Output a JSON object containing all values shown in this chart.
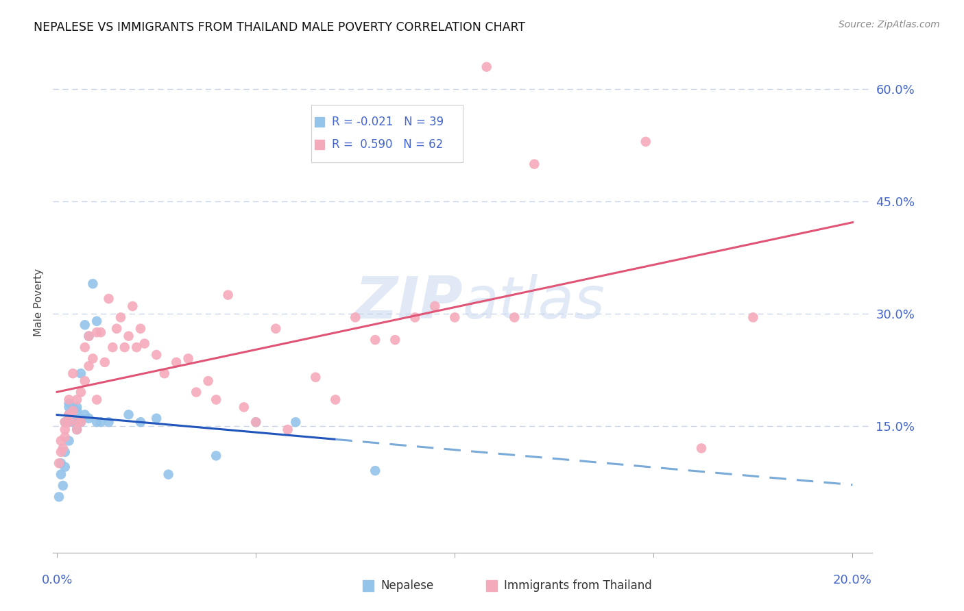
{
  "title": "NEPALESE VS IMMIGRANTS FROM THAILAND MALE POVERTY CORRELATION CHART",
  "source": "Source: ZipAtlas.com",
  "ylabel": "Male Poverty",
  "ymin": -0.02,
  "ymax": 0.65,
  "xmin": -0.001,
  "xmax": 0.205,
  "background_color": "#ffffff",
  "watermark": "ZIPAtlas",
  "blue_color": "#94C4EA",
  "pink_color": "#F5AABB",
  "blue_line_color": "#2255BB",
  "pink_line_color": "#E05575",
  "blue_dashed_color": "#7AAAD8",
  "grid_color": "#C8D4E8",
  "text_color": "#4466CC",
  "title_color": "#111111",
  "yticks": [
    0.0,
    0.15,
    0.3,
    0.45,
    0.6
  ],
  "ytick_labels": [
    "",
    "15.0%",
    "30.0%",
    "45.0%",
    "60.0%"
  ],
  "nepalese_x": [
    0.0005,
    0.001,
    0.001,
    0.0015,
    0.002,
    0.002,
    0.002,
    0.003,
    0.003,
    0.003,
    0.003,
    0.003,
    0.004,
    0.004,
    0.004,
    0.005,
    0.005,
    0.005,
    0.005,
    0.006,
    0.006,
    0.006,
    0.007,
    0.007,
    0.008,
    0.008,
    0.009,
    0.01,
    0.01,
    0.011,
    0.013,
    0.018,
    0.021,
    0.025,
    0.028,
    0.04,
    0.05,
    0.06,
    0.08
  ],
  "nepalese_y": [
    0.055,
    0.085,
    0.1,
    0.07,
    0.095,
    0.115,
    0.155,
    0.13,
    0.155,
    0.165,
    0.175,
    0.18,
    0.155,
    0.16,
    0.175,
    0.145,
    0.155,
    0.17,
    0.175,
    0.155,
    0.16,
    0.22,
    0.165,
    0.285,
    0.16,
    0.27,
    0.34,
    0.155,
    0.29,
    0.155,
    0.155,
    0.165,
    0.155,
    0.16,
    0.085,
    0.11,
    0.155,
    0.155,
    0.09
  ],
  "thailand_x": [
    0.0005,
    0.001,
    0.001,
    0.0015,
    0.002,
    0.002,
    0.002,
    0.003,
    0.003,
    0.003,
    0.004,
    0.004,
    0.005,
    0.005,
    0.005,
    0.006,
    0.006,
    0.007,
    0.007,
    0.008,
    0.008,
    0.009,
    0.01,
    0.01,
    0.011,
    0.012,
    0.013,
    0.014,
    0.015,
    0.016,
    0.017,
    0.018,
    0.019,
    0.02,
    0.021,
    0.022,
    0.025,
    0.027,
    0.03,
    0.033,
    0.035,
    0.038,
    0.04,
    0.043,
    0.047,
    0.05,
    0.055,
    0.058,
    0.065,
    0.07,
    0.075,
    0.08,
    0.085,
    0.09,
    0.095,
    0.1,
    0.108,
    0.115,
    0.12,
    0.148,
    0.162,
    0.175
  ],
  "thailand_y": [
    0.1,
    0.115,
    0.13,
    0.12,
    0.135,
    0.145,
    0.155,
    0.155,
    0.165,
    0.185,
    0.17,
    0.22,
    0.145,
    0.155,
    0.185,
    0.155,
    0.195,
    0.21,
    0.255,
    0.23,
    0.27,
    0.24,
    0.185,
    0.275,
    0.275,
    0.235,
    0.32,
    0.255,
    0.28,
    0.295,
    0.255,
    0.27,
    0.31,
    0.255,
    0.28,
    0.26,
    0.245,
    0.22,
    0.235,
    0.24,
    0.195,
    0.21,
    0.185,
    0.325,
    0.175,
    0.155,
    0.28,
    0.145,
    0.215,
    0.185,
    0.295,
    0.265,
    0.265,
    0.295,
    0.31,
    0.295,
    0.63,
    0.295,
    0.5,
    0.53,
    0.12,
    0.295
  ],
  "legend_row1_r": "R = -0.021",
  "legend_row1_n": "N = 39",
  "legend_row2_r": "R =  0.590",
  "legend_row2_n": "N = 62"
}
